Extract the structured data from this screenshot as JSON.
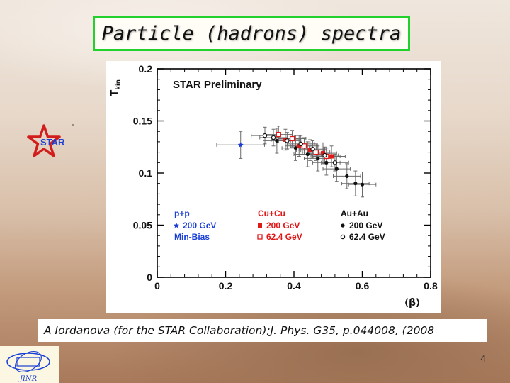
{
  "slide": {
    "title": "Particle (hadrons) spectra",
    "caption": "A Iordanova (for the STAR Collaboration);J. Phys. G35, p.044008, (2008",
    "page_number": "4",
    "star_logo_text": "STAR",
    "jinr_logo_text": "JINR",
    "colors": {
      "title_border": "#22d22c",
      "accent_blue": "#1a3fd6",
      "accent_red": "#e01818"
    }
  },
  "chart_data": {
    "type": "scatter",
    "title": "STAR Preliminary",
    "xlabel": "⟨β⟩",
    "ylabel": "T",
    "ylabel_sub": "kin",
    "xlim": [
      0,
      0.8
    ],
    "ylim": [
      0,
      0.2
    ],
    "x_ticks": [
      0,
      0.2,
      0.4,
      0.6,
      0.8
    ],
    "x_tick_labels": [
      "0",
      "0.2",
      "0.4",
      "0.6",
      "0.8"
    ],
    "y_ticks": [
      0,
      0.05,
      0.1,
      0.15,
      0.2
    ],
    "y_tick_labels": [
      "0",
      "0.05",
      "0.1",
      "0.15",
      "0.2"
    ],
    "legend_groups": [
      {
        "heading": "p+p",
        "color": "#1a3fd6",
        "entries": [
          {
            "label": "200 GeV",
            "marker": "star",
            "series": "pp"
          },
          {
            "label": "Min-Bias",
            "marker": "none"
          }
        ]
      },
      {
        "heading": "Cu+Cu",
        "color": "#e01818",
        "entries": [
          {
            "label": "200 GeV",
            "marker": "filled-square",
            "series": "cu200"
          },
          {
            "label": "62.4 GeV",
            "marker": "open-square",
            "series": "cu62"
          }
        ]
      },
      {
        "heading": "Au+Au",
        "color": "#111111",
        "entries": [
          {
            "label": "200 GeV",
            "marker": "filled-circle",
            "series": "au200"
          },
          {
            "label": "62.4 GeV",
            "marker": "open-circle",
            "series": "au62"
          }
        ]
      }
    ],
    "series": [
      {
        "name": "p+p 200 GeV Min-Bias",
        "key": "pp",
        "marker": "star",
        "color": "#1a3fd6",
        "points": [
          {
            "x": 0.244,
            "y": 0.127,
            "xerr": 0.07,
            "yerr": 0.013
          }
        ]
      },
      {
        "name": "Cu+Cu 200 GeV",
        "key": "cu200",
        "marker": "filled-square",
        "color": "#e01818",
        "points": [
          {
            "x": 0.375,
            "y": 0.132,
            "xerr": 0.04,
            "yerr": 0.01
          },
          {
            "x": 0.415,
            "y": 0.126,
            "xerr": 0.04,
            "yerr": 0.01
          },
          {
            "x": 0.447,
            "y": 0.122,
            "xerr": 0.04,
            "yerr": 0.01
          },
          {
            "x": 0.485,
            "y": 0.119,
            "xerr": 0.04,
            "yerr": 0.01
          },
          {
            "x": 0.51,
            "y": 0.116,
            "xerr": 0.04,
            "yerr": 0.01
          }
        ]
      },
      {
        "name": "Cu+Cu 62.4 GeV",
        "key": "cu62",
        "marker": "open-square",
        "color": "#e01818",
        "points": [
          {
            "x": 0.355,
            "y": 0.137,
            "xerr": 0.04,
            "yerr": 0.008
          },
          {
            "x": 0.395,
            "y": 0.133,
            "xerr": 0.04,
            "yerr": 0.008
          },
          {
            "x": 0.43,
            "y": 0.126,
            "xerr": 0.04,
            "yerr": 0.008
          },
          {
            "x": 0.465,
            "y": 0.12,
            "xerr": 0.04,
            "yerr": 0.008
          },
          {
            "x": 0.495,
            "y": 0.116,
            "xerr": 0.04,
            "yerr": 0.008
          }
        ]
      },
      {
        "name": "Au+Au 200 GeV",
        "key": "au200",
        "marker": "filled-circle",
        "color": "#111111",
        "points": [
          {
            "x": 0.35,
            "y": 0.131,
            "xerr": 0.04,
            "yerr": 0.012
          },
          {
            "x": 0.405,
            "y": 0.124,
            "xerr": 0.04,
            "yerr": 0.012
          },
          {
            "x": 0.44,
            "y": 0.118,
            "xerr": 0.04,
            "yerr": 0.012
          },
          {
            "x": 0.47,
            "y": 0.114,
            "xerr": 0.04,
            "yerr": 0.012
          },
          {
            "x": 0.495,
            "y": 0.11,
            "xerr": 0.04,
            "yerr": 0.012
          },
          {
            "x": 0.525,
            "y": 0.104,
            "xerr": 0.04,
            "yerr": 0.012
          },
          {
            "x": 0.555,
            "y": 0.097,
            "xerr": 0.04,
            "yerr": 0.012
          },
          {
            "x": 0.58,
            "y": 0.09,
            "xerr": 0.04,
            "yerr": 0.012
          },
          {
            "x": 0.6,
            "y": 0.089,
            "xerr": 0.04,
            "yerr": 0.012
          }
        ]
      },
      {
        "name": "Au+Au 62.4 GeV",
        "key": "au62",
        "marker": "open-circle",
        "color": "#111111",
        "points": [
          {
            "x": 0.315,
            "y": 0.136,
            "xerr": 0.04,
            "yerr": 0.008
          },
          {
            "x": 0.34,
            "y": 0.134,
            "xerr": 0.04,
            "yerr": 0.008
          },
          {
            "x": 0.38,
            "y": 0.131,
            "xerr": 0.04,
            "yerr": 0.008
          },
          {
            "x": 0.42,
            "y": 0.128,
            "xerr": 0.04,
            "yerr": 0.008
          },
          {
            "x": 0.455,
            "y": 0.123,
            "xerr": 0.04,
            "yerr": 0.008
          },
          {
            "x": 0.49,
            "y": 0.117,
            "xerr": 0.04,
            "yerr": 0.008
          },
          {
            "x": 0.52,
            "y": 0.11,
            "xerr": 0.04,
            "yerr": 0.008
          }
        ]
      }
    ]
  }
}
